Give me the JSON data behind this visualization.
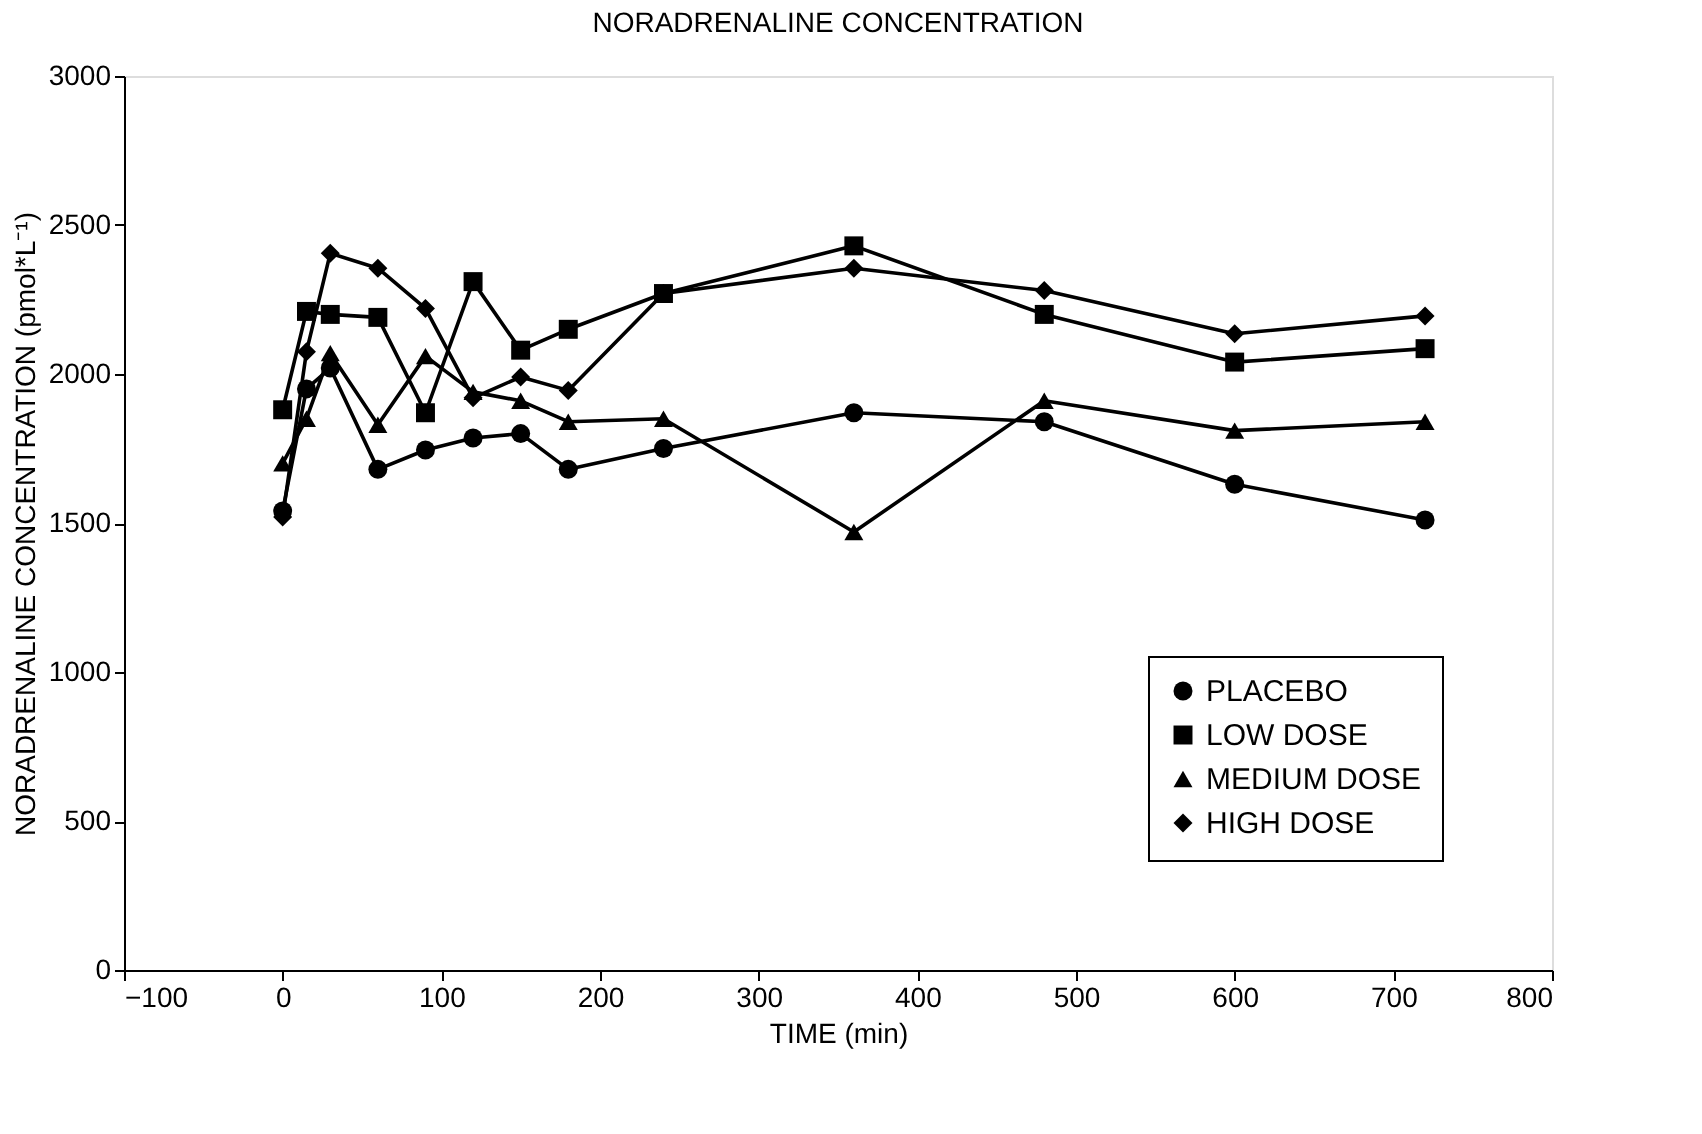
{
  "chart_data": {
    "type": "line",
    "title": "NORADRENALINE CONCENTRATION",
    "xlabel": "TIME (min)",
    "ylabel": "NORADRENALINE CONCENTRATION (pmol*L⁻¹)",
    "x": [
      0,
      15,
      30,
      60,
      90,
      120,
      150,
      180,
      240,
      360,
      480,
      600,
      720
    ],
    "series": [
      {
        "name": "PLACEBO",
        "color": "#000000",
        "marker": "circle",
        "values": [
          1540,
          1950,
          2020,
          1680,
          1745,
          1785,
          1800,
          1680,
          1750,
          1870,
          1840,
          1630,
          1510
        ]
      },
      {
        "name": "LOW DOSE",
        "color": "#000000",
        "marker": "square",
        "values": [
          1880,
          2210,
          2200,
          2190,
          1870,
          2310,
          2080,
          2150,
          2270,
          2430,
          2200,
          2040,
          2085
        ]
      },
      {
        "name": "MEDIUM DOSE",
        "color": "#000000",
        "marker": "triangle",
        "values": [
          1700,
          1850,
          2070,
          1830,
          2060,
          1940,
          1910,
          1840,
          1850,
          1470,
          1910,
          1810,
          1840
        ]
      },
      {
        "name": "HIGH DOSE",
        "color": "#000000",
        "marker": "diamond",
        "values": [
          1520,
          2075,
          2405,
          2355,
          2220,
          1920,
          1990,
          1945,
          2270,
          2355,
          2280,
          2135,
          2195
        ]
      }
    ],
    "xlim": [
      -100,
      800
    ],
    "xticks": [
      -100,
      0,
      100,
      200,
      300,
      400,
      500,
      600,
      700,
      800
    ],
    "ylim": [
      0,
      3000
    ],
    "yticks": [
      0,
      500,
      1000,
      1500,
      2000,
      2500,
      3000
    ],
    "grid": false,
    "legend": "bottom right",
    "line_style": "solid"
  }
}
